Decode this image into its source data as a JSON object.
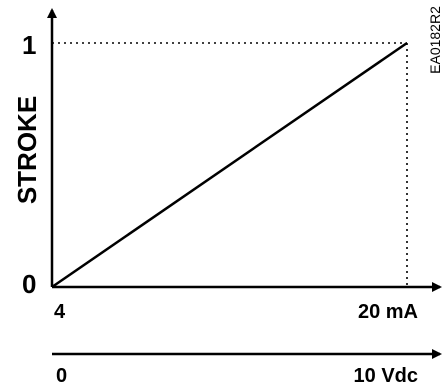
{
  "chart_data": {
    "type": "line",
    "ylabel": "STROKE",
    "y_ticks": [
      "0",
      "1"
    ],
    "x_axis_primary": {
      "start_label": "4",
      "end_label": "20 mA",
      "range": [
        4,
        20
      ]
    },
    "x_axis_secondary": {
      "start_label": "0",
      "end_label": "10 Vdc",
      "range": [
        0,
        10
      ]
    },
    "ylim": [
      0,
      1
    ],
    "series": [
      {
        "x": [
          4,
          20
        ],
        "y": [
          0,
          1
        ]
      }
    ],
    "reference_lines": "dotted lines from (20, 0) to (20, 1) and from (4, 1) to (20, 1)",
    "code_label": "EA0182R2",
    "colors": {
      "line": "#000000",
      "axis": "#000000"
    }
  }
}
